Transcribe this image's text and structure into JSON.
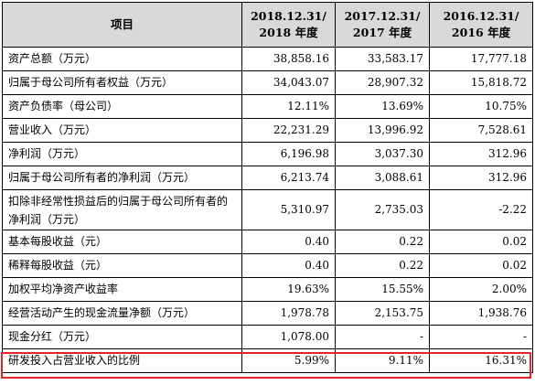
{
  "table": {
    "headers": [
      {
        "line1": "项目",
        "line2": ""
      },
      {
        "line1": "2018.12.31/",
        "line2": "2018 年度"
      },
      {
        "line1": "2017.12.31/",
        "line2": "2017 年度"
      },
      {
        "line1": "2016.12.31/",
        "line2": "2016 年度"
      }
    ],
    "rows": [
      {
        "label": "资产总额（万元）",
        "v2018": "38,858.16",
        "v2017": "33,583.17",
        "v2016": "17,777.18"
      },
      {
        "label": "归属于母公司所有者权益（万元）",
        "v2018": "34,043.07",
        "v2017": "28,907.32",
        "v2016": "15,818.72"
      },
      {
        "label": "资产负债率（母公司）",
        "v2018": "12.11%",
        "v2017": "13.69%",
        "v2016": "10.75%"
      },
      {
        "label": "营业收入（万元）",
        "v2018": "22,231.29",
        "v2017": "13,996.92",
        "v2016": "7,528.61"
      },
      {
        "label": "净利润（万元）",
        "v2018": "6,196.98",
        "v2017": "3,037.30",
        "v2016": "312.96"
      },
      {
        "label": "归属于母公司所有者的净利润（万元）",
        "v2018": "6,213.74",
        "v2017": "3,088.61",
        "v2016": "312.96"
      },
      {
        "label": "扣除非经常性损益后的归属于母公司所有者的净利润（万元）",
        "v2018": "5,310.97",
        "v2017": "2,735.03",
        "v2016": "-2.22"
      },
      {
        "label": "基本每股收益（元）",
        "v2018": "0.40",
        "v2017": "0.22",
        "v2016": "0.02"
      },
      {
        "label": "稀释每股收益（元）",
        "v2018": "0.40",
        "v2017": "0.22",
        "v2016": "0.02"
      },
      {
        "label": "加权平均净资产收益率",
        "v2018": "19.63%",
        "v2017": "15.55%",
        "v2016": "2.00%"
      },
      {
        "label": "经营活动产生的现金流量净额（万元）",
        "v2018": "1,978.78",
        "v2017": "2,153.75",
        "v2016": "1,938.76"
      },
      {
        "label": "现金分红（万元）",
        "v2018": "1,078.00",
        "v2017": "-",
        "v2016": "-"
      },
      {
        "label": "研发投入占营业收入的比例",
        "v2018": "5.99%",
        "v2017": "9.11%",
        "v2016": "16.31%"
      }
    ]
  },
  "highlight_color": "#e3242b",
  "header_bg": "#d9d9d9"
}
